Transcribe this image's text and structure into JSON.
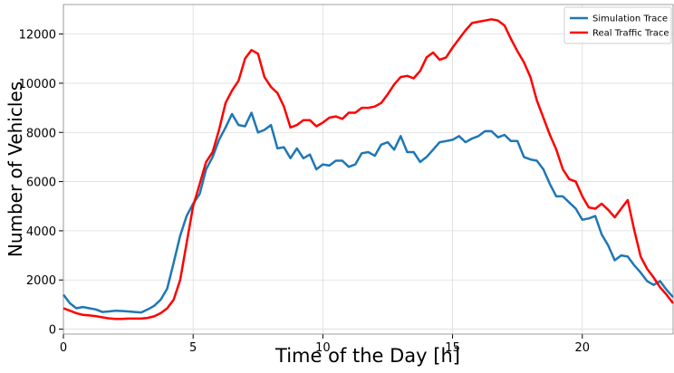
{
  "chart_data": {
    "type": "line",
    "x_label": "Time of the Day [h]",
    "y_label": "Number of Vehicles",
    "x": [
      0,
      0.25,
      0.5,
      0.75,
      1,
      1.25,
      1.5,
      1.75,
      2,
      2.25,
      2.5,
      2.75,
      3,
      3.25,
      3.5,
      3.75,
      4,
      4.25,
      4.5,
      4.75,
      5,
      5.25,
      5.5,
      5.75,
      6,
      6.25,
      6.5,
      6.75,
      7,
      7.25,
      7.5,
      7.75,
      8,
      8.25,
      8.5,
      8.75,
      9,
      9.25,
      9.5,
      9.75,
      10,
      10.25,
      10.5,
      10.75,
      11,
      11.25,
      11.5,
      11.75,
      12,
      12.25,
      12.5,
      12.75,
      13,
      13.25,
      13.5,
      13.75,
      14,
      14.25,
      14.5,
      14.75,
      15,
      15.25,
      15.5,
      15.75,
      16,
      16.25,
      16.5,
      16.75,
      17,
      17.25,
      17.5,
      17.75,
      18,
      18.25,
      18.5,
      18.75,
      19,
      19.25,
      19.5,
      19.75,
      20,
      20.25,
      20.5,
      20.75,
      21,
      21.25,
      21.5,
      21.75,
      22,
      22.25,
      22.5,
      22.75,
      23,
      23.25,
      23.5
    ],
    "series": [
      {
        "name": "Simulation Trace",
        "color": "#1f77b4",
        "values": [
          1400,
          1050,
          850,
          900,
          850,
          800,
          700,
          720,
          750,
          740,
          720,
          700,
          680,
          800,
          950,
          1200,
          1650,
          2700,
          3800,
          4600,
          5100,
          5500,
          6500,
          7000,
          7700,
          8200,
          8750,
          8300,
          8250,
          8800,
          8000,
          8100,
          8300,
          7350,
          7400,
          6950,
          7350,
          6950,
          7100,
          6500,
          6700,
          6650,
          6850,
          6850,
          6600,
          6700,
          7150,
          7200,
          7050,
          7500,
          7600,
          7300,
          7850,
          7200,
          7200,
          6800,
          7000,
          7300,
          7600,
          7650,
          7700,
          7850,
          7600,
          7750,
          7850,
          8050,
          8050,
          7800,
          7900,
          7650,
          7650,
          7000,
          6900,
          6850,
          6500,
          5900,
          5400,
          5400,
          5150,
          4900,
          4450,
          4500,
          4600,
          3850,
          3400,
          2800,
          3000,
          2950,
          2600,
          2300,
          1950,
          1800,
          1950,
          1600,
          1300
        ]
      },
      {
        "name": "Real Traffic Trace",
        "color": "#ff0000",
        "values": [
          850,
          750,
          650,
          580,
          560,
          530,
          480,
          440,
          420,
          420,
          430,
          430,
          430,
          460,
          520,
          650,
          850,
          1200,
          2000,
          3500,
          5000,
          5900,
          6800,
          7200,
          8100,
          9200,
          9700,
          10100,
          11000,
          11350,
          11200,
          10250,
          9850,
          9600,
          9050,
          8200,
          8300,
          8500,
          8500,
          8250,
          8400,
          8600,
          8650,
          8550,
          8800,
          8800,
          9000,
          9000,
          9050,
          9200,
          9550,
          9950,
          10250,
          10300,
          10200,
          10500,
          11050,
          11250,
          10950,
          11050,
          11450,
          11800,
          12150,
          12450,
          12500,
          12550,
          12600,
          12550,
          12350,
          11800,
          11300,
          10850,
          10250,
          9300,
          8600,
          7900,
          7300,
          6500,
          6100,
          6000,
          5400,
          4950,
          4900,
          5100,
          4850,
          4550,
          4900,
          5250,
          4050,
          2950,
          2450,
          2100,
          1700,
          1400,
          1050
        ]
      }
    ],
    "xlim": [
      0,
      23.5
    ],
    "ylim": [
      -200,
      13200
    ],
    "xticks": [
      0,
      5,
      10,
      15,
      20
    ],
    "yticks": [
      0,
      2000,
      4000,
      6000,
      8000,
      10000,
      12000
    ],
    "grid": true,
    "legend": "upper right"
  }
}
